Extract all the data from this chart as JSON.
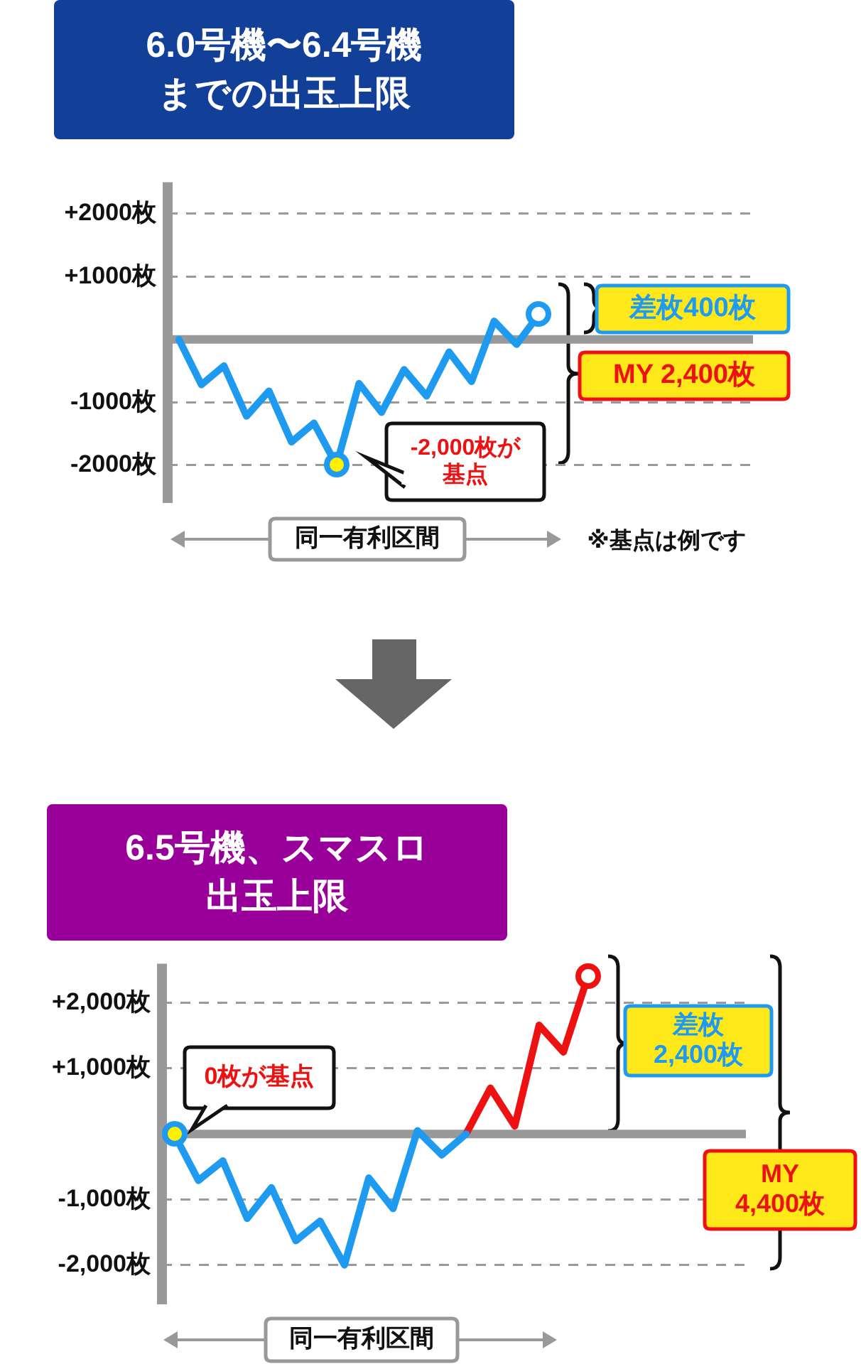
{
  "chart_data": [
    {
      "type": "line",
      "title": "6.0号機〜6.4号機までの出玉上限",
      "categories": [
        null,
        null,
        null,
        null,
        null,
        null,
        null,
        null,
        null,
        null,
        null,
        null,
        null,
        null,
        null,
        null,
        null,
        null,
        null,
        null,
        null,
        null,
        null,
        null,
        null,
        null
      ],
      "series": [
        {
          "color": "#1e9bf0",
          "values": [
            0,
            -720,
            -420,
            -1220,
            -820,
            -1630,
            -1330,
            -2000,
            -700,
            -1160,
            -480,
            -900,
            -200,
            -670,
            290,
            -80,
            400,
            null,
            null,
            null,
            null,
            null,
            null,
            null,
            null,
            null
          ]
        }
      ],
      "ylim": [
        -2600,
        2500
      ],
      "yticks": [
        {
          "value": 2000,
          "label": "+2000枚"
        },
        {
          "value": 1000,
          "label": "+1000枚"
        },
        {
          "value": -1000,
          "label": "-1000枚"
        },
        {
          "value": -2000,
          "label": "-2000枚"
        }
      ],
      "ref_lines": [
        {
          "axis": "y",
          "value": 0,
          "color": "#999999"
        }
      ],
      "grid": "y",
      "legend": false,
      "tick_labels": "y",
      "marker": "none",
      "line_style": "solid",
      "annotations": [
        "差枚400枚",
        "MY 2,400枚",
        "-2,000枚が基点",
        "同一有利区間",
        "※基点は例です"
      ]
    },
    {
      "type": "line",
      "title": "6.5号機、スマスロ出玉上限",
      "categories": [
        null,
        null,
        null,
        null,
        null,
        null,
        null,
        null,
        null,
        null,
        null,
        null,
        null,
        null,
        null,
        null,
        null,
        null,
        null,
        null,
        null,
        null,
        null,
        null
      ],
      "series": [
        {
          "color": "#1e9bf0",
          "values": [
            0,
            -710,
            -410,
            -1290,
            -820,
            -1630,
            -1330,
            -2000,
            -670,
            -1140,
            50,
            -320,
            0,
            null,
            null,
            null,
            null,
            null,
            null,
            null,
            null,
            null,
            null,
            null
          ]
        },
        {
          "color": "#ee1111",
          "values": [
            null,
            null,
            null,
            null,
            null,
            null,
            null,
            null,
            null,
            null,
            null,
            null,
            0,
            700,
            120,
            1660,
            1250,
            2400,
            null,
            null,
            null,
            null,
            null,
            null
          ]
        }
      ],
      "ylim": [
        -2600,
        2600
      ],
      "yticks": [
        {
          "value": 2000,
          "label": "+2,000枚"
        },
        {
          "value": 1000,
          "label": "+1,000枚"
        },
        {
          "value": -1000,
          "label": "-1,000枚"
        },
        {
          "value": -2000,
          "label": "-2,000枚"
        }
      ],
      "ref_lines": [
        {
          "axis": "y",
          "value": 0,
          "color": "#999999"
        }
      ],
      "grid": "y",
      "legend": false,
      "tick_labels": "y",
      "marker": "none",
      "line_style": "solid",
      "annotations": [
        "0枚が基点",
        "差枚\n2,400枚",
        "MY\n4,400枚",
        "同一有利区間"
      ]
    }
  ]
}
